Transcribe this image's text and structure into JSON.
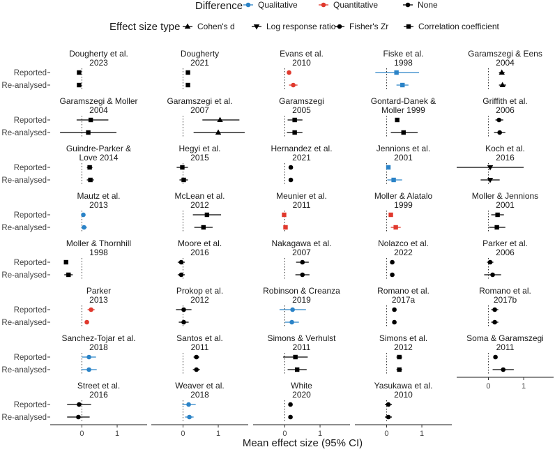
{
  "chart_data": {
    "type": "forest-plot",
    "xlabel": "Mean effect size (95% CI)",
    "x_ticks": [
      0,
      1
    ],
    "x_range": [
      -0.9,
      1.85
    ],
    "row_labels": [
      "Reported",
      "Re-analysed"
    ],
    "legend": {
      "difference_title": "Difference",
      "difference_items": [
        {
          "label": "Qualitative",
          "color": "#2b83c7"
        },
        {
          "label": "Quantitative",
          "color": "#e0392d"
        },
        {
          "label": "None",
          "color": "#000000"
        }
      ],
      "shape_title": "Effect size type",
      "shape_items": [
        {
          "label": "Cohen's d",
          "shape": "triangle-up"
        },
        {
          "label": "Log response ratio",
          "shape": "triangle-down"
        },
        {
          "label": "Fisher's Zr",
          "shape": "circle"
        },
        {
          "label": "Correlation coefficient",
          "shape": "square"
        }
      ]
    },
    "colors": {
      "Qualitative": "#2b83c7",
      "Quantitative": "#e0392d",
      "None": "#000000"
    },
    "panels": [
      {
        "title1": "Dougherty et al.",
        "title2": "2023",
        "shape": "square",
        "difference": "None",
        "reported": [
          -0.08,
          -0.12,
          -0.04
        ],
        "reanalysed": [
          -0.08,
          -0.12,
          -0.04
        ]
      },
      {
        "title1": "Dougherty",
        "title2": "2021",
        "shape": "square",
        "difference": "None",
        "reported": [
          0.14,
          0.08,
          0.2
        ],
        "reanalysed": [
          0.14,
          0.1,
          0.18
        ]
      },
      {
        "title1": "Evans et al.",
        "title2": "2010",
        "shape": "circle",
        "difference": "Quantitative",
        "reported": [
          0.12,
          0.08,
          0.16
        ],
        "reanalysed": [
          0.24,
          0.12,
          0.36
        ]
      },
      {
        "title1": "Fiske et al.",
        "title2": "1998",
        "shape": "square",
        "difference": "Qualitative",
        "reported": [
          0.28,
          -0.32,
          0.92
        ],
        "reanalysed": [
          0.45,
          0.28,
          0.62
        ]
      },
      {
        "title1": "Garamszegi & Eens",
        "title2": "2004",
        "shape": "triangle-up",
        "difference": "None",
        "reported": [
          0.38,
          0.3,
          0.46
        ],
        "reanalysed": [
          0.4,
          0.3,
          0.5
        ]
      },
      {
        "title1": "Garamszegi & Moller",
        "title2": "2004",
        "shape": "square",
        "difference": "None",
        "reported": [
          0.25,
          -0.15,
          0.75
        ],
        "reanalysed": [
          0.18,
          -0.62,
          0.98
        ]
      },
      {
        "title1": "Garamszegi et al.",
        "title2": "2007",
        "shape": "triangle-up",
        "difference": "None",
        "reported": [
          1.05,
          0.55,
          1.6
        ],
        "reanalysed": [
          1.0,
          0.3,
          1.75
        ]
      },
      {
        "title1": "Garamszegi",
        "title2": "2005",
        "shape": "square",
        "difference": "None",
        "reported": [
          0.28,
          0.08,
          0.5
        ],
        "reanalysed": [
          0.28,
          0.06,
          0.5
        ]
      },
      {
        "title1": "Gontard-Danek &",
        "title2": "Moller 1999",
        "shape": "square",
        "difference": "None",
        "reported": [
          0.3,
          0.3,
          0.3
        ],
        "reanalysed": [
          0.48,
          0.12,
          0.88
        ]
      },
      {
        "title1": "Griffith et al.",
        "title2": "2006",
        "shape": "circle",
        "difference": "None",
        "reported": [
          0.3,
          0.2,
          0.42
        ],
        "reanalysed": [
          0.32,
          0.16,
          0.48
        ]
      },
      {
        "title1": "Guindre-Parker &",
        "title2": "Love 2014",
        "shape": "square",
        "difference": "None",
        "reported": [
          0.22,
          0.14,
          0.3
        ],
        "reanalysed": [
          0.24,
          0.14,
          0.34
        ]
      },
      {
        "title1": "Hegyi et al.",
        "title2": "2015",
        "shape": "square",
        "difference": "None",
        "reported": [
          -0.02,
          -0.18,
          0.14
        ],
        "reanalysed": [
          0.02,
          -0.1,
          0.14
        ]
      },
      {
        "title1": "Hernandez et al.",
        "title2": "2021",
        "shape": "circle",
        "difference": "None",
        "reported": [
          0.17,
          0.13,
          0.21
        ],
        "reanalysed": [
          0.17,
          0.11,
          0.23
        ]
      },
      {
        "title1": "Jennions et al.",
        "title2": "2001",
        "shape": "square",
        "difference": "Qualitative",
        "reported": [
          0.05,
          0.02,
          0.08
        ],
        "reanalysed": [
          0.2,
          0.02,
          0.44
        ]
      },
      {
        "title1": "Koch et al.",
        "title2": "2016",
        "shape": "triangle-down",
        "difference": "None",
        "reported": [
          0.05,
          -0.9,
          1.0
        ],
        "reanalysed": [
          0.05,
          -0.22,
          0.32
        ]
      },
      {
        "title1": "Mautz et al.",
        "title2": "2013",
        "shape": "circle",
        "difference": "Qualitative",
        "reported": [
          0.04,
          -0.02,
          0.1
        ],
        "reanalysed": [
          0.06,
          -0.02,
          0.14
        ]
      },
      {
        "title1": "McLean et al.",
        "title2": "2012",
        "shape": "square",
        "difference": "None",
        "reported": [
          0.68,
          0.28,
          1.08
        ],
        "reanalysed": [
          0.58,
          0.32,
          0.84
        ]
      },
      {
        "title1": "Meunier et al.",
        "title2": "2011",
        "shape": "square",
        "difference": "Quantitative",
        "reported": [
          -0.02,
          -0.06,
          0.02
        ],
        "reanalysed": [
          0.02,
          -0.04,
          0.08
        ]
      },
      {
        "title1": "Moller & Alatalo",
        "title2": "1999",
        "shape": "square",
        "difference": "Quantitative",
        "reported": [
          0.12,
          0.12,
          0.12
        ],
        "reanalysed": [
          0.26,
          0.12,
          0.4
        ]
      },
      {
        "title1": "Moller & Jennions",
        "title2": "2001",
        "shape": "square",
        "difference": "None",
        "reported": [
          0.26,
          0.08,
          0.44
        ],
        "reanalysed": [
          0.24,
          0.02,
          0.48
        ]
      },
      {
        "title1": "Moller & Thornhill",
        "title2": "1998",
        "shape": "square",
        "difference": "None",
        "reported": [
          -0.45,
          -0.45,
          -0.45
        ],
        "reanalysed": [
          -0.38,
          -0.5,
          -0.26
        ]
      },
      {
        "title1": "Moore et al.",
        "title2": "2016",
        "shape": "circle",
        "difference": "None",
        "reported": [
          -0.05,
          -0.15,
          0.05
        ],
        "reanalysed": [
          -0.05,
          -0.15,
          0.05
        ]
      },
      {
        "title1": "Nakagawa et al.",
        "title2": "2007",
        "shape": "circle",
        "difference": "None",
        "reported": [
          0.5,
          0.32,
          0.68
        ],
        "reanalysed": [
          0.5,
          0.3,
          0.7
        ]
      },
      {
        "title1": "Nolazco et al.",
        "title2": "2022",
        "shape": "circle",
        "difference": "None",
        "reported": [
          0.16,
          0.1,
          0.22
        ],
        "reanalysed": [
          0.16,
          0.1,
          0.22
        ]
      },
      {
        "title1": "Parker et al.",
        "title2": "2006",
        "shape": "circle",
        "difference": "None",
        "reported": [
          0.05,
          -0.04,
          0.14
        ],
        "reanalysed": [
          0.12,
          -0.12,
          0.36
        ]
      },
      {
        "title1": "Parker",
        "title2": "2013",
        "shape": "circle",
        "difference": "Quantitative",
        "reported": [
          0.26,
          0.16,
          0.36
        ],
        "reanalysed": [
          0.14,
          0.14,
          0.14
        ]
      },
      {
        "title1": "Prokop et al.",
        "title2": "2012",
        "shape": "circle",
        "difference": "None",
        "reported": [
          0.02,
          -0.2,
          0.24
        ],
        "reanalysed": [
          0.02,
          -0.12,
          0.16
        ]
      },
      {
        "title1": "Robinson & Creanza",
        "title2": "2019",
        "shape": "circle",
        "difference": "Qualitative",
        "reported": [
          0.22,
          -0.15,
          0.6
        ],
        "reanalysed": [
          0.2,
          0.0,
          0.4
        ]
      },
      {
        "title1": "Romano et al.",
        "title2": "2017a",
        "shape": "circle",
        "difference": "None",
        "reported": [
          0.22,
          0.22,
          0.22
        ],
        "reanalysed": [
          0.22,
          0.22,
          0.22
        ]
      },
      {
        "title1": "Romano et al.",
        "title2": "2017b",
        "shape": "circle",
        "difference": "None",
        "reported": [
          0.18,
          0.08,
          0.28
        ],
        "reanalysed": [
          0.18,
          0.08,
          0.28
        ]
      },
      {
        "title1": "Sanchez-Tojar et al.",
        "title2": "2018",
        "shape": "circle",
        "difference": "Qualitative",
        "reported": [
          0.2,
          0.0,
          0.4
        ],
        "reanalysed": [
          0.2,
          -0.02,
          0.42
        ]
      },
      {
        "title1": "Santos et al.",
        "title2": "2011",
        "shape": "circle",
        "difference": "None",
        "reported": [
          0.38,
          0.3,
          0.46
        ],
        "reanalysed": [
          0.38,
          0.28,
          0.48
        ]
      },
      {
        "title1": "Simons & Verhulst",
        "title2": "2011",
        "shape": "square",
        "difference": "None",
        "reported": [
          0.3,
          -0.05,
          0.65
        ],
        "reanalysed": [
          0.35,
          0.08,
          0.62
        ]
      },
      {
        "title1": "Simons et al.",
        "title2": "2012",
        "shape": "square",
        "difference": "None",
        "reported": [
          0.36,
          0.28,
          0.44
        ],
        "reanalysed": [
          0.36,
          0.28,
          0.44
        ]
      },
      {
        "title1": "Soma & Garamszegi",
        "title2": "2011",
        "shape": "circle",
        "difference": "None",
        "reported": [
          0.2,
          0.2,
          0.2
        ],
        "reanalysed": [
          0.42,
          0.12,
          0.72
        ]
      },
      {
        "title1": "Street et al.",
        "title2": "2016",
        "shape": "circle",
        "difference": "None",
        "reported": [
          -0.08,
          -0.42,
          0.26
        ],
        "reanalysed": [
          -0.1,
          -0.42,
          0.22
        ]
      },
      {
        "title1": "Weaver et al.",
        "title2": "2018",
        "shape": "circle",
        "difference": "Qualitative",
        "reported": [
          0.16,
          -0.02,
          0.36
        ],
        "reanalysed": [
          0.18,
          0.06,
          0.3
        ]
      },
      {
        "title1": "White",
        "title2": "2020",
        "shape": "circle",
        "difference": "None",
        "reported": [
          0.16,
          0.1,
          0.22
        ],
        "reanalysed": [
          0.16,
          0.1,
          0.22
        ]
      },
      {
        "title1": "Yasukawa et al.",
        "title2": "2010",
        "shape": "circle",
        "difference": "None",
        "reported": [
          0.05,
          -0.05,
          0.15
        ],
        "reanalysed": [
          0.05,
          -0.05,
          0.15
        ]
      }
    ]
  }
}
